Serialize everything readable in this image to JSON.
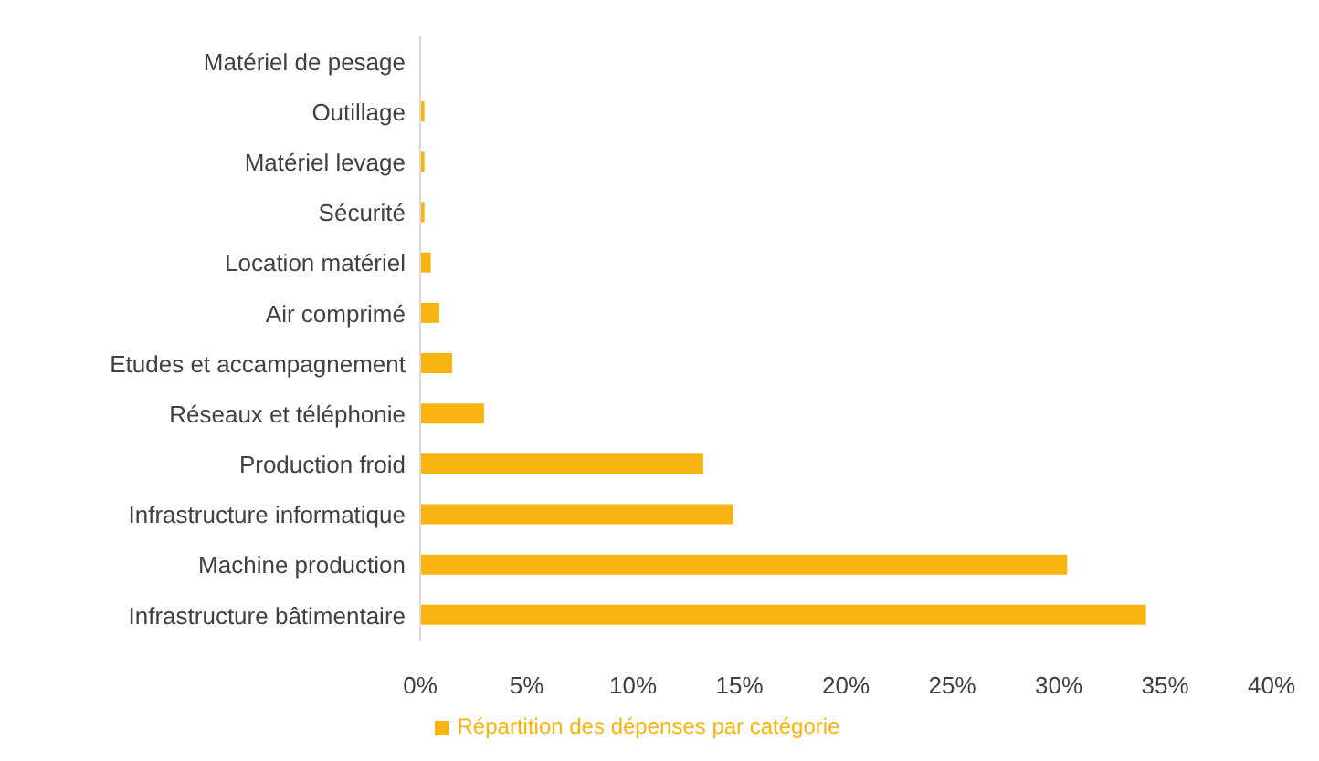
{
  "chart_data": {
    "type": "bar",
    "orientation": "horizontal",
    "categories": [
      "Matériel de pesage",
      "Outillage",
      "Matériel levage",
      "Sécurité",
      "Location matériel",
      "Air comprimé",
      "Etudes et accampagnement",
      "Réseaux et téléphonie",
      "Production froid",
      "Infrastructure informatique",
      "Machine production",
      "Infrastructure bâtimentaire"
    ],
    "series": [
      {
        "name": "Répartition des dépenses par catégorie",
        "color": "#f7b30f",
        "values": [
          0,
          0.2,
          0.2,
          0.2,
          0.5,
          0.9,
          1.5,
          3.0,
          13.3,
          14.7,
          30.4,
          34.1
        ]
      }
    ],
    "xlim": [
      0,
      40
    ],
    "xticks": [
      {
        "value": 0,
        "label": "0%"
      },
      {
        "value": 5,
        "label": "5%"
      },
      {
        "value": 10,
        "label": "10%"
      },
      {
        "value": 15,
        "label": "15%"
      },
      {
        "value": 20,
        "label": "20%"
      },
      {
        "value": 25,
        "label": "25%"
      },
      {
        "value": 30,
        "label": "30%"
      },
      {
        "value": 35,
        "label": "35%"
      },
      {
        "value": 40,
        "label": "40%"
      }
    ],
    "grid": false,
    "legend": "bottom"
  }
}
